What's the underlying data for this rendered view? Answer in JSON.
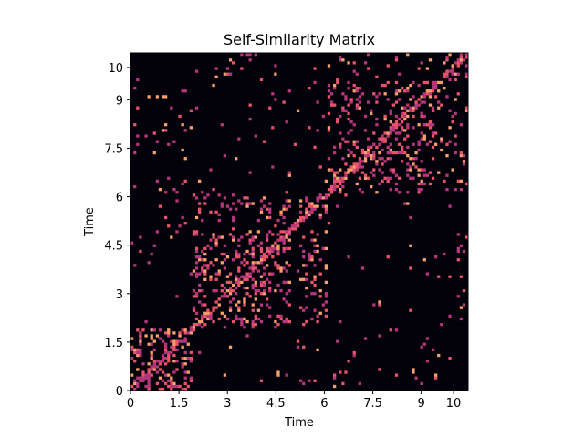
{
  "chart_data": {
    "type": "heatmap",
    "title": "Self-Similarity Matrix",
    "xlabel": "Time",
    "ylabel": "Time",
    "xlim": [
      0,
      10.45
    ],
    "ylim": [
      0,
      10.45
    ],
    "x_ticks": [
      {
        "value": 0,
        "label": "0"
      },
      {
        "value": 1.5,
        "label": "1.5"
      },
      {
        "value": 3,
        "label": "3"
      },
      {
        "value": 4.5,
        "label": "4.5"
      },
      {
        "value": 6,
        "label": "6"
      },
      {
        "value": 7.5,
        "label": "7.5"
      },
      {
        "value": 9,
        "label": "9"
      },
      {
        "value": 10,
        "label": "10"
      }
    ],
    "y_ticks": [
      {
        "value": 0,
        "label": "0"
      },
      {
        "value": 1.5,
        "label": "1.5"
      },
      {
        "value": 3,
        "label": "3"
      },
      {
        "value": 4.5,
        "label": "4.5"
      },
      {
        "value": 6,
        "label": "6"
      },
      {
        "value": 7.5,
        "label": "7.5"
      },
      {
        "value": 9,
        "label": "9"
      },
      {
        "value": 10,
        "label": "10"
      }
    ],
    "colormap": [
      "#03020a",
      "#b5367a",
      "#e8536a",
      "#f7a06a"
    ],
    "background_color": "#03020a",
    "segments": [
      {
        "start": 0,
        "end": 1.9,
        "density": 0.28
      },
      {
        "start": 1.9,
        "end": 4.95,
        "density": 0.22
      },
      {
        "start": 4.95,
        "end": 5.2,
        "density": 0.03
      },
      {
        "start": 5.2,
        "end": 6.1,
        "density": 0.24
      },
      {
        "start": 6.1,
        "end": 9.6,
        "density": 0.18
      },
      {
        "start": 9.6,
        "end": 10.45,
        "density": 0.14
      }
    ]
  }
}
